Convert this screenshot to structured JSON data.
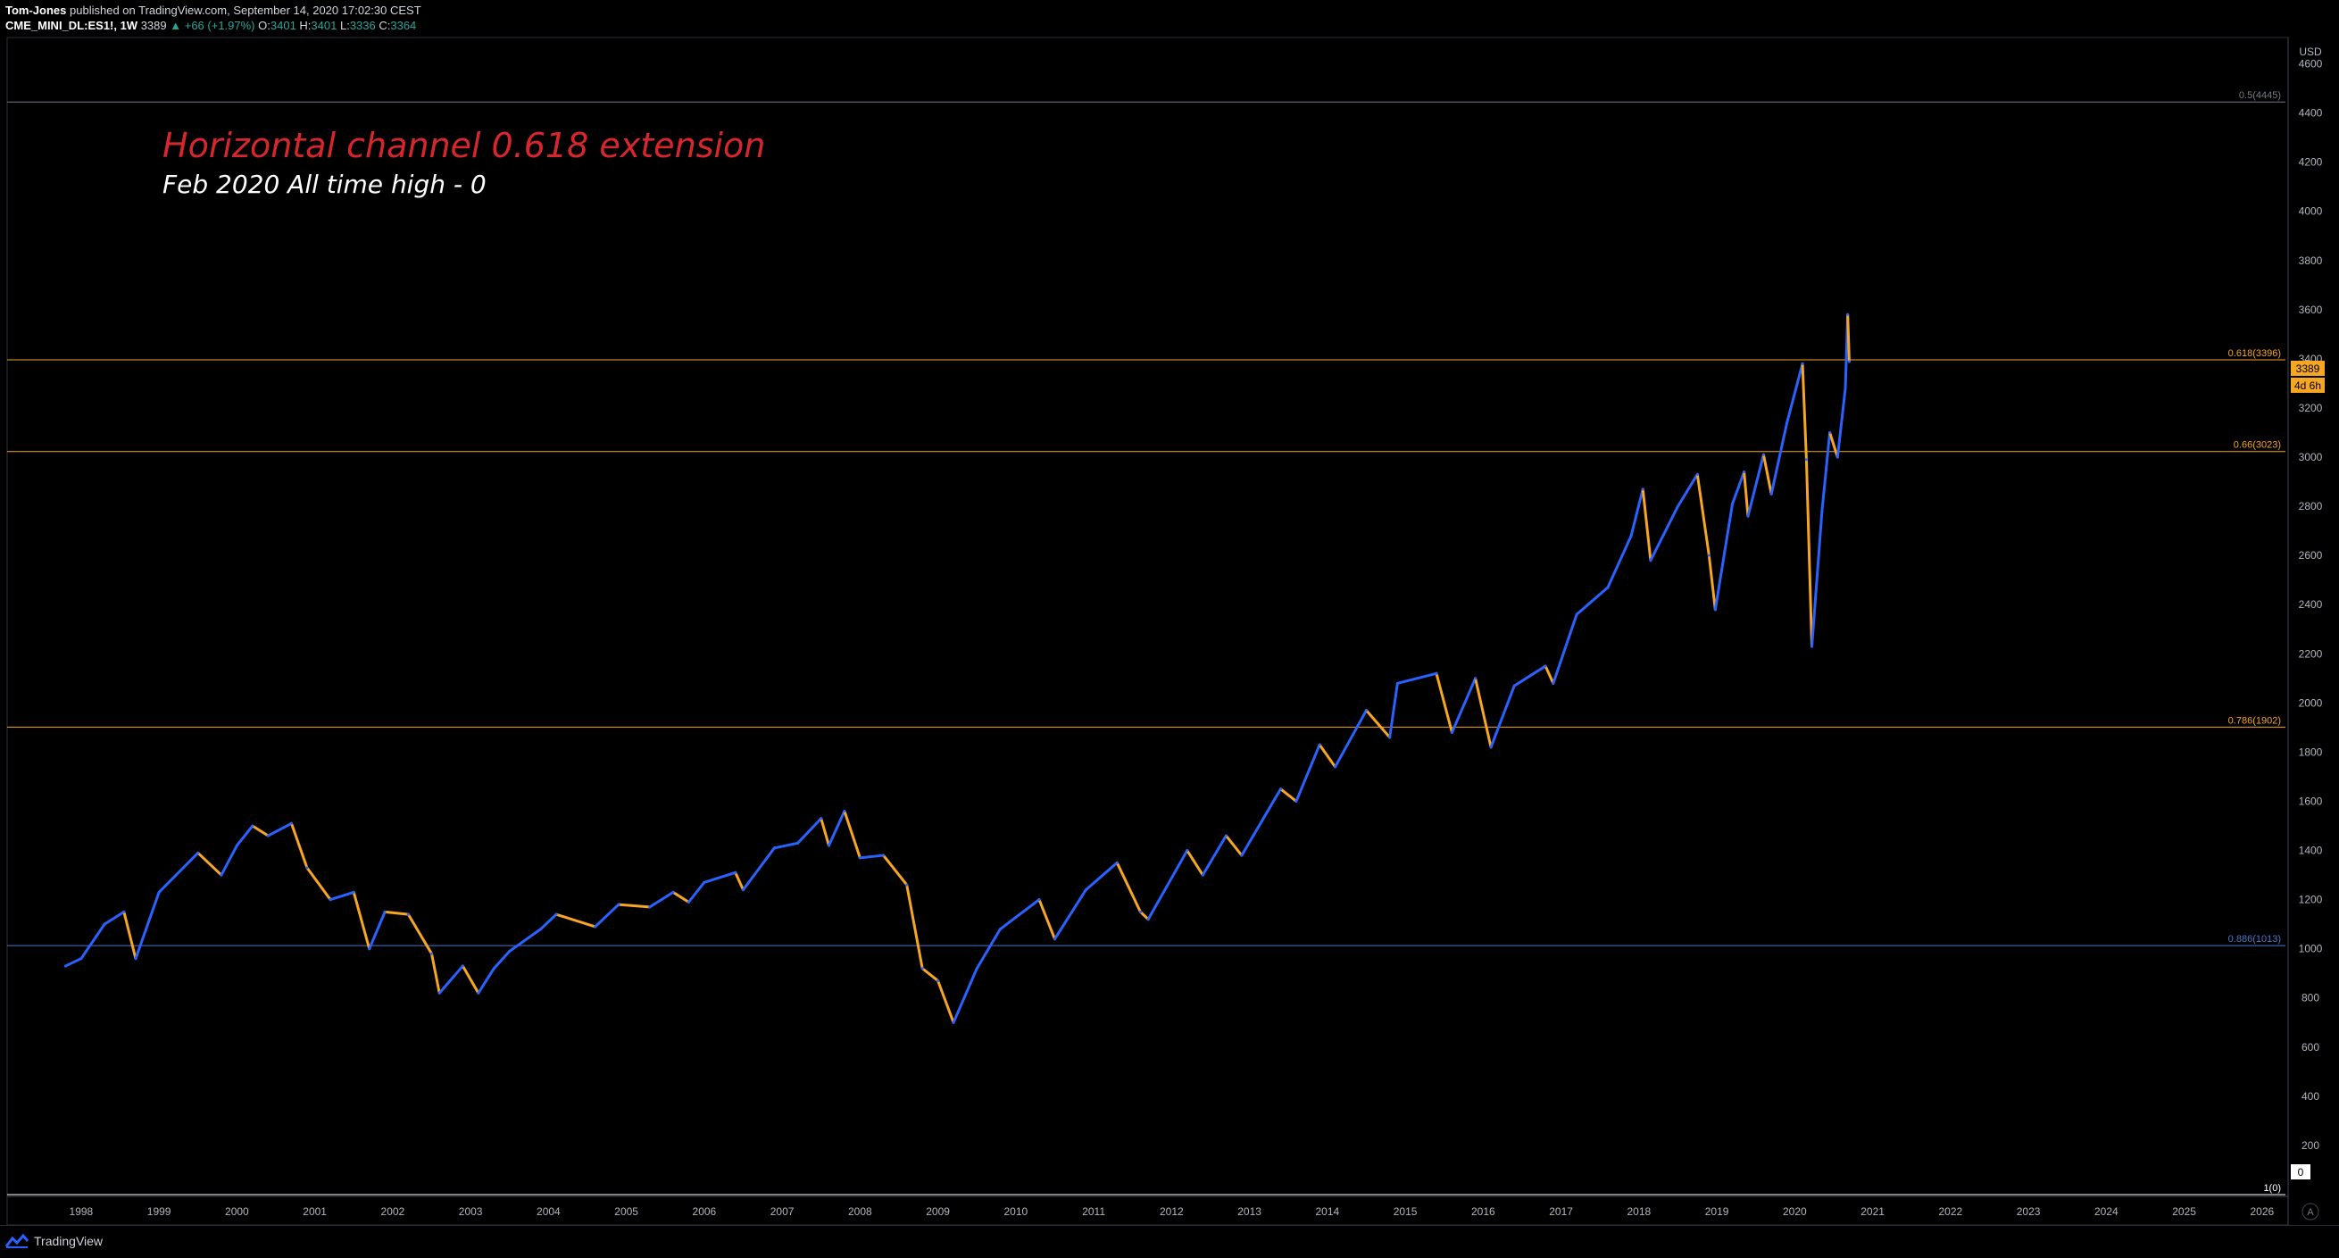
{
  "header": {
    "user": "Tom-Jones",
    "published_text": "published on TradingView.com, September 14, 2020 17:02:30 CEST",
    "symbol": "CME_MINI_DL:ES1!, 1W",
    "last": "3389",
    "change": "▲ +66 (+1.97%)",
    "o_label": "O:",
    "o_value": "3401",
    "h_label": "H:",
    "h_value": "3401",
    "l_label": "L:",
    "l_value": "3336",
    "c_label": "C:",
    "c_value": "3364"
  },
  "footer": {
    "brand": "TradingView"
  },
  "annotations": {
    "title": "Horizontal channel 0.618 extension",
    "subtitle": "Feb 2020 All time high - 0"
  },
  "price_axis": {
    "currency": "USD",
    "last_price_tag": "3389",
    "countdown_tag": "4d 6h",
    "zero_tag": "0",
    "auto_button": "A"
  },
  "colors": {
    "background": "#000000",
    "up_bar": "#2962ff",
    "down_bar": "#f6a623",
    "fib_orange": "#f6a623",
    "fib_blue": "#4a78c8",
    "fib_gray": "#787b86",
    "fib_white": "#ffffff",
    "title_red": "#d8262d"
  },
  "chart_data": {
    "type": "line",
    "ylim": [
      0,
      4700
    ],
    "xlim": [
      1997.05,
      2026.3
    ],
    "y_ticks": [
      200,
      400,
      600,
      800,
      1000,
      1200,
      1400,
      1600,
      1800,
      2000,
      2200,
      2400,
      2600,
      2800,
      3000,
      3200,
      3400,
      3600,
      3800,
      4000,
      4200,
      4400,
      4600
    ],
    "x_ticks": [
      1998,
      1999,
      2000,
      2001,
      2002,
      2003,
      2004,
      2005,
      2006,
      2007,
      2008,
      2009,
      2010,
      2011,
      2012,
      2013,
      2014,
      2015,
      2016,
      2017,
      2018,
      2019,
      2020,
      2021,
      2022,
      2023,
      2024,
      2025,
      2026
    ],
    "fib_levels": [
      {
        "label": "0.5(4445)",
        "value": 4445,
        "color": "#787b86"
      },
      {
        "label": "0.618(3396)",
        "value": 3396,
        "color": "#f6a623"
      },
      {
        "label": "0.66(3023)",
        "value": 3023,
        "color": "#f6a623"
      },
      {
        "label": "0.786(1902)",
        "value": 1902,
        "color": "#f6a623"
      },
      {
        "label": "0.886(1013)",
        "value": 1013,
        "color": "#4a78c8"
      },
      {
        "label": "1(0)",
        "value": 0,
        "color": "#ffffff"
      }
    ],
    "series": [
      {
        "points": [
          [
            1997.8,
            930
          ],
          [
            1998.0,
            960
          ],
          [
            1998.3,
            1100
          ],
          [
            1998.55,
            1150
          ],
          [
            1998.7,
            960
          ],
          [
            1999.0,
            1230
          ],
          [
            1999.5,
            1390
          ],
          [
            1999.8,
            1300
          ],
          [
            2000.0,
            1420
          ],
          [
            2000.2,
            1500
          ],
          [
            2000.4,
            1460
          ],
          [
            2000.7,
            1510
          ],
          [
            2000.9,
            1330
          ],
          [
            2001.2,
            1200
          ],
          [
            2001.5,
            1230
          ],
          [
            2001.7,
            1000
          ],
          [
            2001.9,
            1150
          ],
          [
            2002.2,
            1140
          ],
          [
            2002.5,
            980
          ],
          [
            2002.6,
            820
          ],
          [
            2002.9,
            930
          ],
          [
            2003.1,
            820
          ],
          [
            2003.3,
            920
          ],
          [
            2003.5,
            990
          ],
          [
            2003.9,
            1080
          ],
          [
            2004.1,
            1140
          ],
          [
            2004.6,
            1090
          ],
          [
            2004.9,
            1180
          ],
          [
            2005.3,
            1170
          ],
          [
            2005.6,
            1230
          ],
          [
            2005.8,
            1190
          ],
          [
            2006.0,
            1270
          ],
          [
            2006.4,
            1310
          ],
          [
            2006.5,
            1240
          ],
          [
            2006.9,
            1410
          ],
          [
            2007.2,
            1430
          ],
          [
            2007.5,
            1530
          ],
          [
            2007.6,
            1420
          ],
          [
            2007.8,
            1560
          ],
          [
            2008.0,
            1370
          ],
          [
            2008.3,
            1380
          ],
          [
            2008.6,
            1260
          ],
          [
            2008.8,
            920
          ],
          [
            2009.0,
            870
          ],
          [
            2009.2,
            700
          ],
          [
            2009.5,
            920
          ],
          [
            2009.8,
            1080
          ],
          [
            2010.3,
            1200
          ],
          [
            2010.5,
            1040
          ],
          [
            2010.9,
            1240
          ],
          [
            2011.3,
            1350
          ],
          [
            2011.6,
            1150
          ],
          [
            2011.7,
            1120
          ],
          [
            2012.2,
            1400
          ],
          [
            2012.4,
            1300
          ],
          [
            2012.7,
            1460
          ],
          [
            2012.9,
            1380
          ],
          [
            2013.4,
            1650
          ],
          [
            2013.6,
            1600
          ],
          [
            2013.9,
            1830
          ],
          [
            2014.1,
            1740
          ],
          [
            2014.5,
            1970
          ],
          [
            2014.8,
            1860
          ],
          [
            2014.9,
            2080
          ],
          [
            2015.4,
            2120
          ],
          [
            2015.6,
            1880
          ],
          [
            2015.9,
            2100
          ],
          [
            2016.1,
            1820
          ],
          [
            2016.4,
            2070
          ],
          [
            2016.8,
            2150
          ],
          [
            2016.9,
            2080
          ],
          [
            2017.2,
            2360
          ],
          [
            2017.6,
            2470
          ],
          [
            2017.9,
            2680
          ],
          [
            2018.05,
            2870
          ],
          [
            2018.15,
            2580
          ],
          [
            2018.5,
            2800
          ],
          [
            2018.75,
            2930
          ],
          [
            2018.9,
            2600
          ],
          [
            2018.98,
            2380
          ],
          [
            2019.2,
            2810
          ],
          [
            2019.35,
            2940
          ],
          [
            2019.4,
            2760
          ],
          [
            2019.6,
            3010
          ],
          [
            2019.7,
            2850
          ],
          [
            2019.9,
            3140
          ],
          [
            2020.1,
            3380
          ],
          [
            2020.15,
            2990
          ],
          [
            2020.22,
            2230
          ],
          [
            2020.35,
            2780
          ],
          [
            2020.45,
            3100
          ],
          [
            2020.55,
            3000
          ],
          [
            2020.65,
            3280
          ],
          [
            2020.68,
            3580
          ],
          [
            2020.7,
            3389
          ]
        ]
      }
    ]
  }
}
